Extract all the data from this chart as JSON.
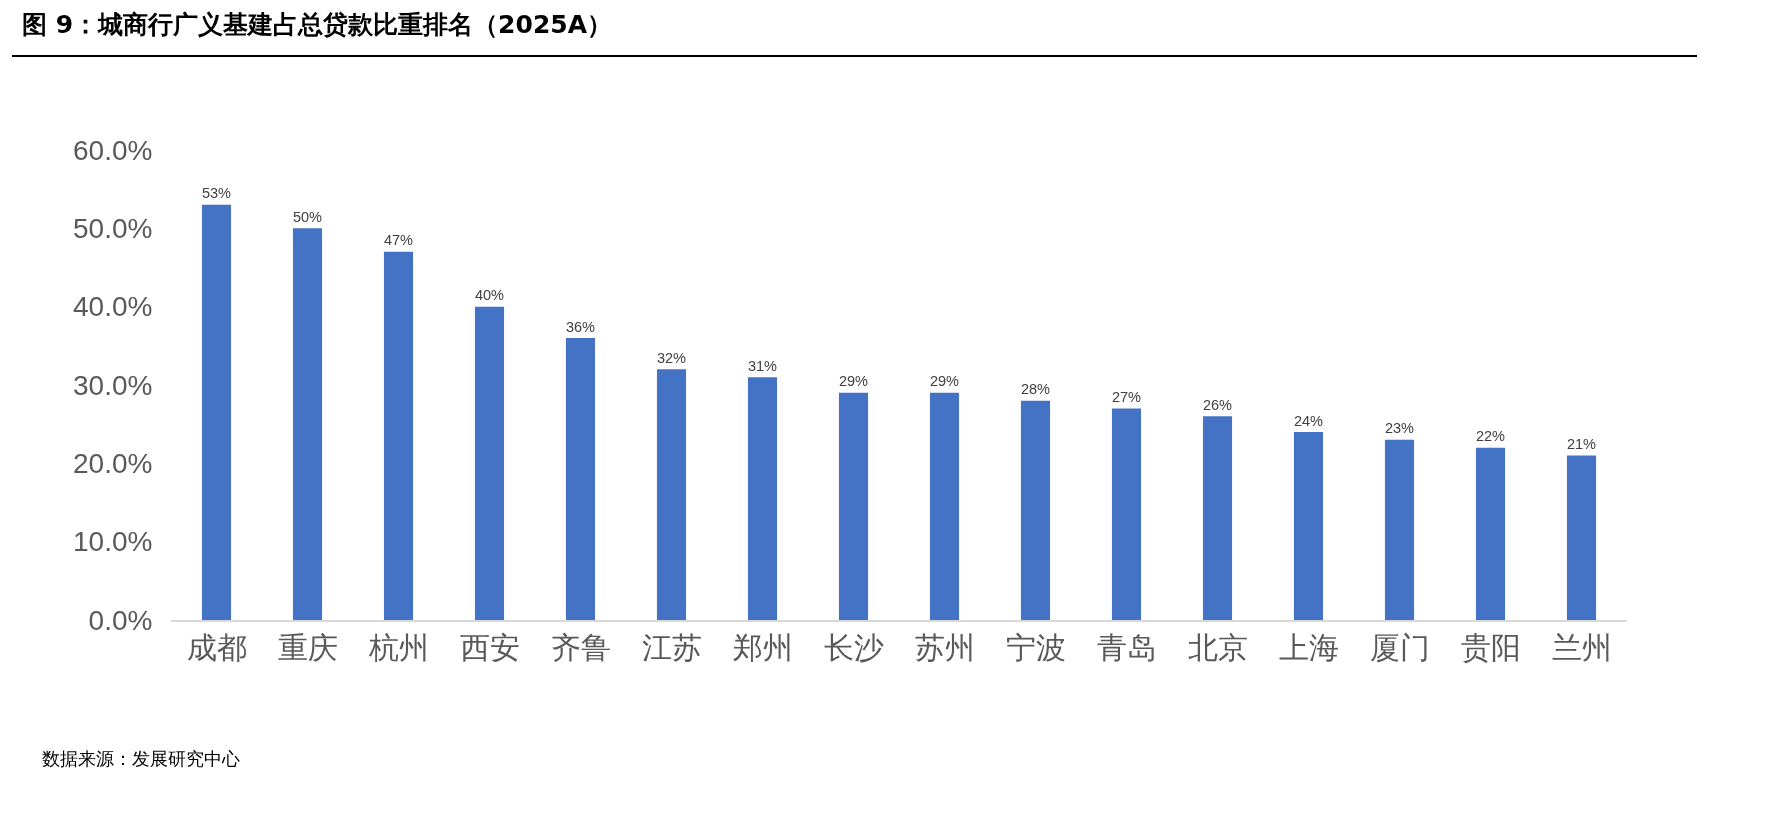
{
  "chart_data": {
    "type": "bar",
    "title": "图 9：城商行广义基建占总贷款比重排名（2025A）",
    "categories": [
      "成都",
      "重庆",
      "杭州",
      "西安",
      "齐鲁",
      "江苏",
      "郑州",
      "长沙",
      "苏州",
      "宁波",
      "青岛",
      "北京",
      "上海",
      "厦门",
      "贵阳",
      "兰州"
    ],
    "values": [
      53,
      50,
      47,
      40,
      36,
      32,
      31,
      29,
      29,
      28,
      27,
      26,
      24,
      23,
      22,
      21
    ],
    "value_labels": [
      "53%",
      "50%",
      "47%",
      "40%",
      "36%",
      "32%",
      "31%",
      "29%",
      "29%",
      "28%",
      "27%",
      "26%",
      "24%",
      "23%",
      "22%",
      "21%"
    ],
    "color": "#4472c4",
    "ylim": [
      0,
      60
    ],
    "yticks": [
      {
        "value": 0,
        "label": "0.0%"
      },
      {
        "value": 10,
        "label": "10.0%"
      },
      {
        "value": 20,
        "label": "20.0%"
      },
      {
        "value": 30,
        "label": "30.0%"
      },
      {
        "value": 40,
        "label": "40.0%"
      },
      {
        "value": 50,
        "label": "50.0%"
      },
      {
        "value": 60,
        "label": "60.0%"
      }
    ],
    "grid": false,
    "legend": false,
    "annotations": [
      "数据来源：发展研究中心"
    ]
  }
}
